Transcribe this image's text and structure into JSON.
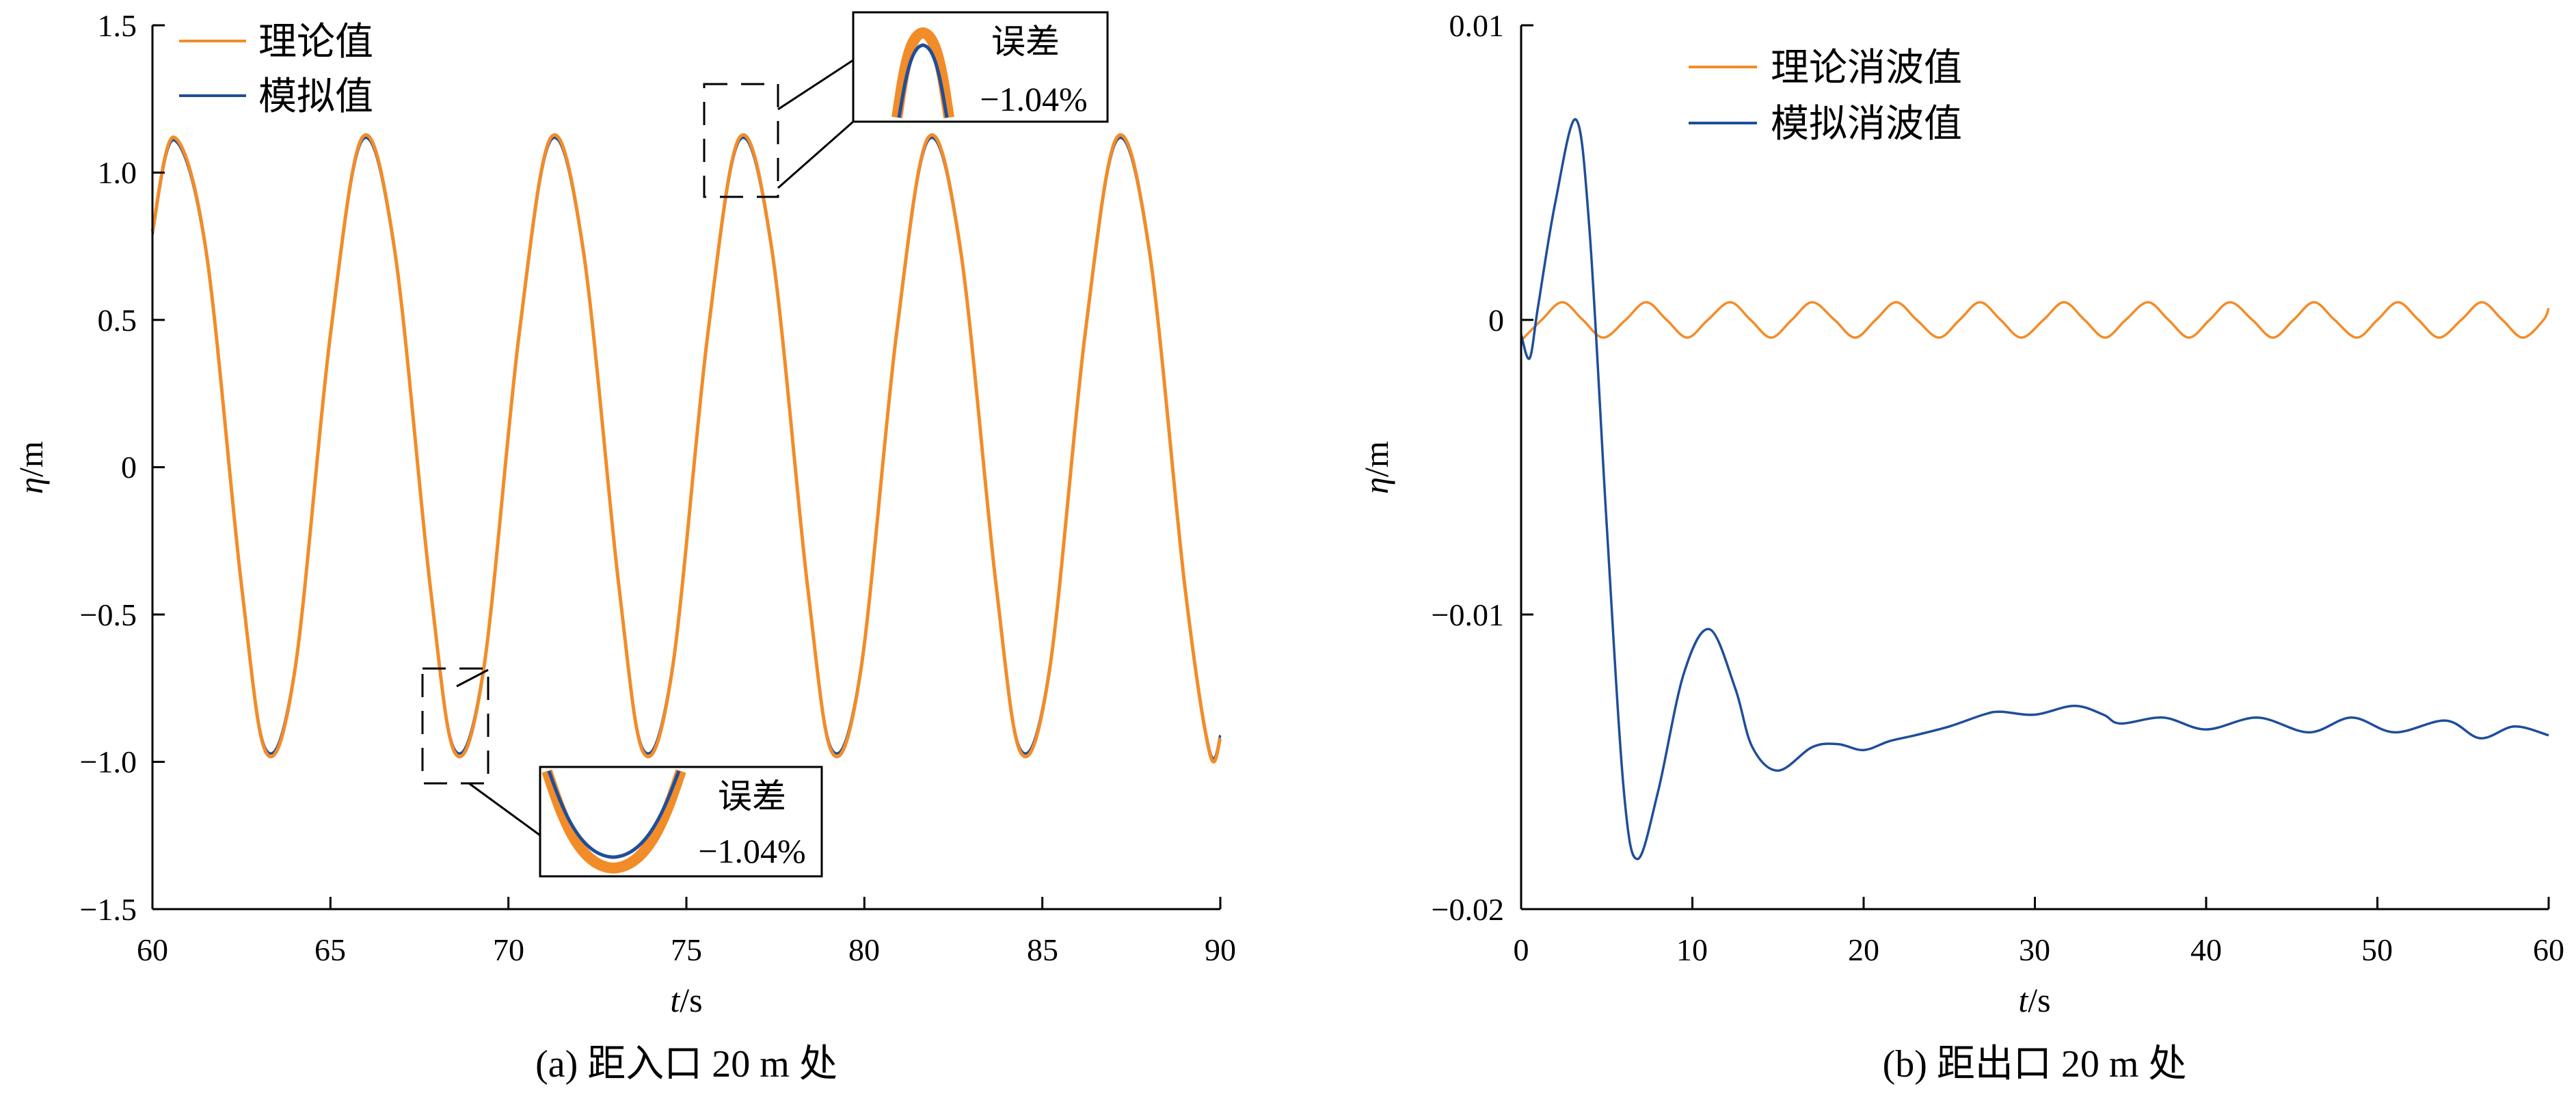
{
  "colors": {
    "theory": "#F28C28",
    "simulated": "#1F4E9A",
    "axis": "#000000"
  },
  "charts": [
    {
      "type": "line",
      "caption": "(a)  距入口 20 m 处",
      "xlabel": {
        "italic": "t",
        "rest": "/s"
      },
      "ylabel": {
        "italic": "η",
        "rest": "/m"
      },
      "xlim": [
        60,
        90
      ],
      "ylim": [
        -1.5,
        1.5
      ],
      "xticks": [
        "60",
        "65",
        "70",
        "75",
        "80",
        "85",
        "90"
      ],
      "yticks": [
        "−1.5",
        "−1.0",
        "−0.5",
        "0",
        "0.5",
        "1.0",
        "1.5"
      ],
      "legend": {
        "position": "top-left",
        "entries": [
          "理论值",
          "模拟值"
        ]
      },
      "insets": [
        {
          "label": "误差",
          "value": "−1.04%",
          "location": "peak near t≈76.5"
        },
        {
          "label": "误差",
          "value": "−1.04%",
          "location": "trough near t≈68.5"
        }
      ]
    },
    {
      "type": "line",
      "caption": "(b)  距出口 20 m 处",
      "xlabel": {
        "italic": "t",
        "rest": "/s"
      },
      "ylabel": {
        "italic": "η",
        "rest": "/m"
      },
      "xlim": [
        0,
        60
      ],
      "ylim": [
        -0.02,
        0.01
      ],
      "xticks": [
        "0",
        "10",
        "20",
        "30",
        "40",
        "50",
        "60"
      ],
      "yticks": [
        "−0.02",
        "−0.01",
        "0",
        "0.01"
      ],
      "legend": {
        "position": "top-center",
        "entries": [
          "理论消波值",
          "模拟消波值"
        ]
      }
    }
  ],
  "chart_data": [
    {
      "type": "line",
      "xlim": [
        60,
        90
      ],
      "ylim": [
        -1.5,
        1.5
      ],
      "series": [
        {
          "name": "理论值",
          "x": [
            60.0,
            60.6,
            61.5,
            62.5,
            63.2,
            64.0,
            65.0,
            65.9,
            66.8,
            67.8,
            68.5,
            69.3,
            70.3,
            71.2,
            72.1,
            73.1,
            73.8,
            74.6,
            75.6,
            76.5,
            77.4,
            78.4,
            79.1,
            79.9,
            80.9,
            81.8,
            82.7,
            83.7,
            84.4,
            85.2,
            86.2,
            87.1,
            88.0,
            89.0,
            89.7,
            90.0
          ],
          "y": [
            0.8,
            1.12,
            0.74,
            -0.4,
            -0.97,
            -0.69,
            0.45,
            1.12,
            0.74,
            -0.4,
            -0.97,
            -0.69,
            0.45,
            1.12,
            0.74,
            -0.4,
            -0.97,
            -0.69,
            0.45,
            1.12,
            0.74,
            -0.4,
            -0.97,
            -0.69,
            0.45,
            1.12,
            0.74,
            -0.4,
            -0.97,
            -0.69,
            0.45,
            1.12,
            0.74,
            -0.4,
            -0.97,
            -0.92
          ]
        },
        {
          "name": "模拟值",
          "x": [
            60.0,
            60.6,
            61.5,
            62.5,
            63.2,
            64.0,
            65.0,
            65.9,
            66.8,
            67.8,
            68.5,
            69.3,
            70.3,
            71.2,
            72.1,
            73.1,
            73.8,
            74.6,
            75.6,
            76.5,
            77.4,
            78.4,
            79.1,
            79.9,
            80.9,
            81.8,
            82.7,
            83.7,
            84.4,
            85.2,
            86.2,
            87.1,
            88.0,
            89.0,
            89.7,
            90.0
          ],
          "y": [
            0.79,
            1.11,
            0.73,
            -0.4,
            -0.96,
            -0.68,
            0.44,
            1.11,
            0.73,
            -0.4,
            -0.96,
            -0.68,
            0.44,
            1.11,
            0.73,
            -0.4,
            -0.96,
            -0.68,
            0.44,
            1.11,
            0.73,
            -0.4,
            -0.96,
            -0.68,
            0.44,
            1.11,
            0.73,
            -0.4,
            -0.96,
            -0.68,
            0.44,
            1.11,
            0.73,
            -0.4,
            -0.96,
            -0.91
          ]
        }
      ]
    },
    {
      "type": "line",
      "xlim": [
        0,
        60
      ],
      "ylim": [
        -0.02,
        0.01
      ],
      "series": [
        {
          "name": "理论消波值",
          "x": [
            0,
            1.2,
            2.4,
            3.6,
            4.8,
            6.1,
            7.3,
            8.5,
            9.7,
            10.9,
            12.2,
            13.4,
            14.6,
            15.8,
            17.0,
            18.3,
            19.5,
            20.7,
            21.9,
            23.1,
            24.4,
            25.6,
            26.8,
            28.0,
            29.2,
            30.5,
            31.7,
            32.9,
            34.1,
            35.3,
            36.6,
            37.8,
            39.0,
            40.2,
            41.4,
            42.7,
            43.9,
            45.1,
            46.3,
            47.5,
            48.8,
            50.0,
            51.2,
            52.4,
            53.6,
            54.9,
            56.1,
            57.3,
            58.5,
            59.7,
            60
          ],
          "y": [
            -0.0007,
            0,
            0.0006,
            0,
            -0.0006,
            0,
            0.0006,
            0,
            -0.0006,
            0,
            0.0006,
            0,
            -0.0006,
            0,
            0.0006,
            0,
            -0.0006,
            0,
            0.0006,
            0,
            -0.0006,
            0,
            0.0006,
            0,
            -0.0006,
            0,
            0.0006,
            0,
            -0.0006,
            0,
            0.0006,
            0,
            -0.0006,
            0,
            0.0006,
            0,
            -0.0006,
            0,
            0.0006,
            0,
            -0.0006,
            0,
            0.0006,
            0,
            -0.0006,
            0,
            0.0006,
            0,
            -0.0006,
            0,
            0.0004
          ]
        },
        {
          "name": "模拟消波值",
          "x": [
            0,
            0.5,
            1.0,
            2.0,
            3.2,
            4.0,
            5.0,
            6.0,
            6.8,
            8.0,
            9.5,
            11.0,
            12.5,
            13.5,
            15.0,
            17.0,
            18.5,
            20.0,
            21.5,
            23.0,
            25.0,
            27.0,
            28.0,
            30.0,
            32.3,
            34.0,
            35.0,
            37.5,
            40.0,
            43.0,
            46.0,
            48.5,
            51.0,
            54.0,
            56.0,
            58.0,
            60.0
          ],
          "y": [
            -0.0005,
            -0.0013,
            0.0005,
            0.004,
            0.0068,
            0.003,
            -0.007,
            -0.016,
            -0.0183,
            -0.016,
            -0.012,
            -0.0105,
            -0.0125,
            -0.0145,
            -0.0153,
            -0.0145,
            -0.0144,
            -0.0146,
            -0.0143,
            -0.0141,
            -0.0138,
            -0.0134,
            -0.0133,
            -0.0134,
            -0.0131,
            -0.0134,
            -0.0137,
            -0.0135,
            -0.0139,
            -0.0135,
            -0.014,
            -0.0135,
            -0.014,
            -0.0136,
            -0.0142,
            -0.0138,
            -0.0141
          ]
        }
      ]
    }
  ]
}
